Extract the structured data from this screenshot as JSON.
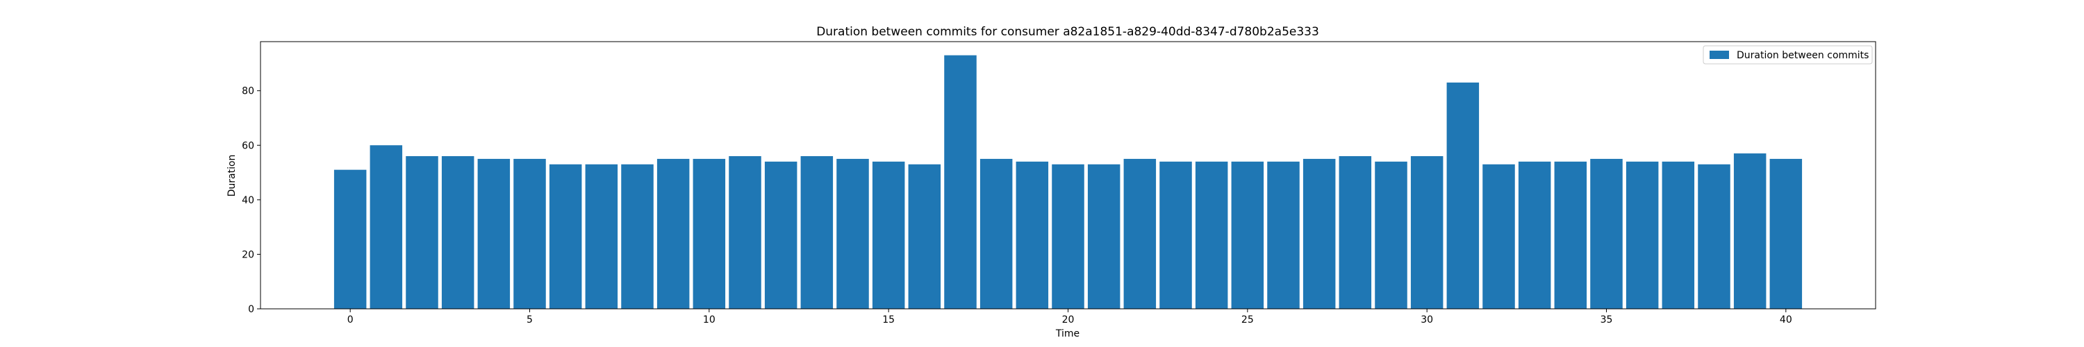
{
  "chart_data": {
    "type": "bar",
    "title": "Duration between commits for consumer a82a1851-a829-40dd-8347-d780b2a5e333",
    "xlabel": "Time",
    "ylabel": "Duration",
    "x": [
      0,
      1,
      2,
      3,
      4,
      5,
      6,
      7,
      8,
      9,
      10,
      11,
      12,
      13,
      14,
      15,
      16,
      17,
      18,
      19,
      20,
      21,
      22,
      23,
      24,
      25,
      26,
      27,
      28,
      29,
      30,
      31,
      32,
      33,
      34,
      35,
      36,
      37,
      38,
      39,
      40
    ],
    "series": [
      {
        "name": "Duration between commits",
        "color": "#1f77b4",
        "values": [
          51,
          60,
          56,
          56,
          55,
          55,
          53,
          53,
          53,
          55,
          55,
          56,
          54,
          56,
          55,
          54,
          53,
          93,
          55,
          54,
          53,
          53,
          55,
          54,
          54,
          54,
          54,
          55,
          56,
          54,
          56,
          83,
          53,
          54,
          54,
          55,
          54,
          54,
          53,
          57,
          55
        ]
      }
    ],
    "xlim": [
      -2.5,
      42.5
    ],
    "ylim": [
      0,
      98
    ],
    "xticks": [
      0,
      5,
      10,
      15,
      20,
      25,
      30,
      35,
      40
    ],
    "yticks": [
      0,
      20,
      40,
      60,
      80
    ],
    "grid": false,
    "legend_position": "top-right"
  }
}
